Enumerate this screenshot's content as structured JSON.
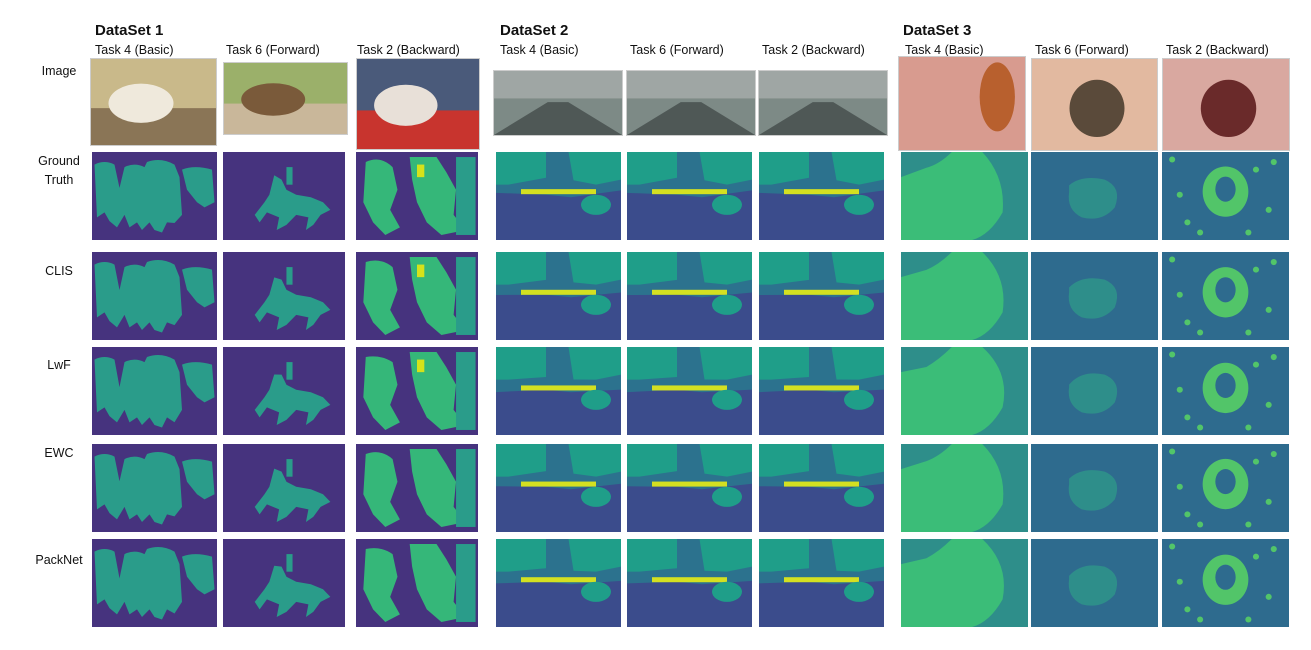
{
  "datasets": [
    {
      "title": "DataSet 1",
      "tasks": [
        "Task 4 (Basic)",
        "Task 6 (Forward)",
        "Task 2 (Backward)"
      ],
      "background_color": "#46337e",
      "mask_colors": [
        "#2a9c8a",
        "#35b779",
        "#d5e21a"
      ]
    },
    {
      "title": "DataSet 2",
      "tasks": [
        "Task 4 (Basic)",
        "Task 6 (Forward)",
        "Task 2 (Backward)"
      ],
      "background_color": "#3b4c8c",
      "mask_colors": [
        "#1f9e89",
        "#d4e021",
        "#2c728e"
      ]
    },
    {
      "title": "DataSet 3",
      "tasks": [
        "Task 4 (Basic)",
        "Task 6 (Forward)",
        "Task 2 (Backward)"
      ],
      "background_color": "#2e6b8e",
      "mask_colors": [
        "#3bbd78",
        "#2e8e8a",
        "#52c569"
      ]
    }
  ],
  "rows": [
    {
      "label": "Image"
    },
    {
      "label": "Ground\nTruth"
    },
    {
      "label": "CLIS"
    },
    {
      "label": "LwF"
    },
    {
      "label": "EWC"
    },
    {
      "label": "PackNet"
    }
  ],
  "photo_icons": [
    "cows-photo",
    "horse-rider-photo",
    "people-photo",
    "street-photo",
    "street-photo",
    "street-photo",
    "skin-lesion-photo",
    "skin-lesion-photo",
    "skin-lesion-photo"
  ]
}
